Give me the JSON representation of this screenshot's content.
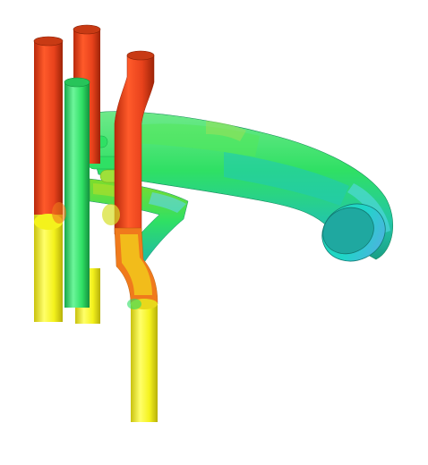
{
  "scene": {
    "subject": "pipe-manifold-field-render",
    "colors": {
      "background": "#ffffff",
      "hot": "#e8421c",
      "warm": "#f07a1c",
      "yellow": "#f4f21c",
      "green": "#2fe064",
      "teal": "#23c6a8",
      "cyan": "#1fd6c8",
      "outlet_cap": "#1fa8a0",
      "light_blue": "#63d4f0",
      "mid_green": "#7fdc2a"
    }
  }
}
